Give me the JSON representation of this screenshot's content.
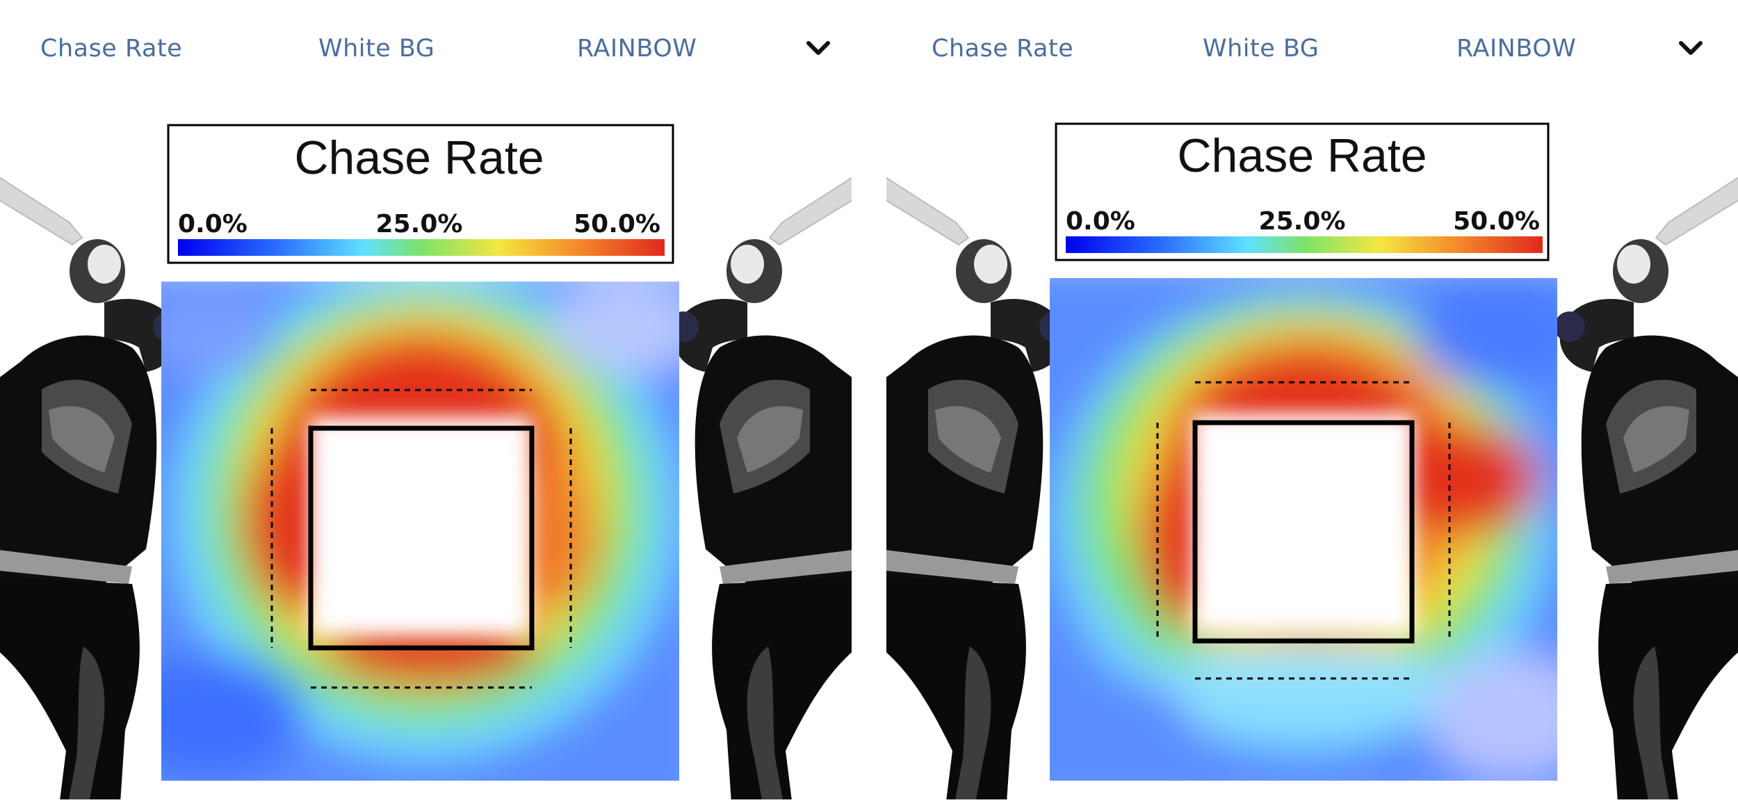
{
  "panels": [
    {
      "controls": {
        "metric": "Chase Rate",
        "background": "White BG",
        "colormap": "RAINBOW"
      },
      "batter_side": "left-and-right",
      "chart_data": {
        "type": "heatmap",
        "title": "Chase Rate",
        "colorbar": {
          "min": 0.0,
          "max": 50.0,
          "unit": "%",
          "ticks": [
            "0.0%",
            "25.0%",
            "50.0%"
          ],
          "colormap": "rainbow"
        },
        "strike_zone_drawn": true,
        "heat_regions": [
          {
            "region": "top-edge",
            "chase_rate": 45
          },
          {
            "region": "left-edge",
            "chase_rate": 45
          },
          {
            "region": "right-edge",
            "chase_rate": 35
          },
          {
            "region": "bottom-edge",
            "chase_rate": 45
          },
          {
            "region": "outer-ring",
            "chase_rate": 22
          },
          {
            "region": "far-outside",
            "chase_rate": 8
          }
        ]
      }
    },
    {
      "controls": {
        "metric": "Chase Rate",
        "background": "White BG",
        "colormap": "RAINBOW"
      },
      "batter_side": "left-and-right",
      "chart_data": {
        "type": "heatmap",
        "title": "Chase Rate",
        "colorbar": {
          "min": 0.0,
          "max": 50.0,
          "unit": "%",
          "ticks": [
            "0.0%",
            "25.0%",
            "50.0%"
          ],
          "colormap": "rainbow"
        },
        "strike_zone_drawn": true,
        "heat_regions": [
          {
            "region": "top-edge",
            "chase_rate": 45
          },
          {
            "region": "left-edge",
            "chase_rate": 42
          },
          {
            "region": "right-edge",
            "chase_rate": 45
          },
          {
            "region": "bottom-edge",
            "chase_rate": 30
          },
          {
            "region": "outer-ring",
            "chase_rate": 20
          },
          {
            "region": "far-outside",
            "chase_rate": 8
          }
        ]
      }
    }
  ],
  "colors": {
    "link": "#4a6e9d",
    "zone_border": "#000000"
  },
  "icons": {
    "dropdown": "chevron-down-icon",
    "batter": "batter-silhouette-icon"
  }
}
